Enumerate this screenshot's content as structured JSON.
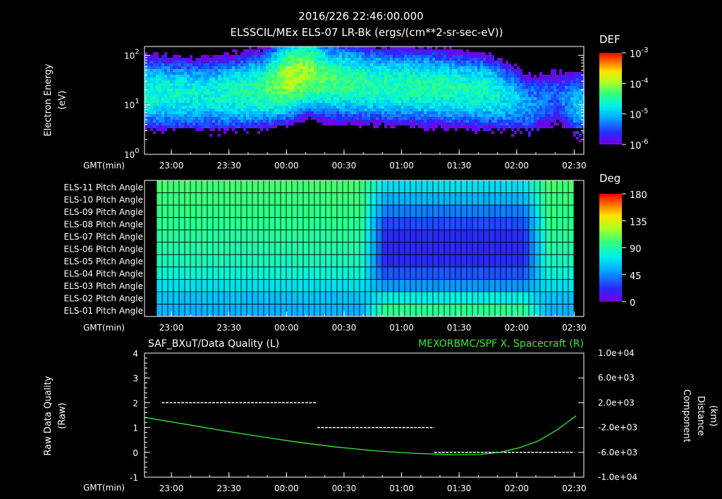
{
  "header": {
    "title_line1": "2016/226 22:46:00.000",
    "title_line2": "ELSSCIL/MEx ELS-07 LR-Bk   (ergs/(cm**2-sr-sec-eV))"
  },
  "colors": {
    "background": "#000000",
    "foreground": "#ffffff",
    "quality_trace": "#ffffff",
    "distance_trace": "#33ee33"
  },
  "chart_data": [
    {
      "type": "heatmap",
      "name": "energy-spectrogram",
      "ylabel_line1": "Electron Energy",
      "ylabel_line2": "(eV)",
      "xlabel": "GMT(min)",
      "x_ticks": [
        "23:00",
        "23:30",
        "00:00",
        "00:30",
        "01:00",
        "01:30",
        "02:00",
        "02:30"
      ],
      "x_range": [
        "22:46",
        "02:35"
      ],
      "y_scale": "log",
      "y_range": [
        1,
        150
      ],
      "y_ticks": [
        "10^0",
        "10^1",
        "10^2"
      ],
      "colorbar": {
        "label": "DEF",
        "scale": "log",
        "ticks": [
          "10^-6",
          "10^-5",
          "10^-4",
          "10^-3"
        ],
        "range": [
          1e-06,
          0.001
        ]
      },
      "profile": {
        "time_min": [
          0,
          30,
          60,
          75,
          85,
          95,
          120,
          150,
          180,
          200,
          215,
          225
        ],
        "core_log10_energy_eV": [
          1.3,
          1.25,
          1.35,
          1.6,
          1.7,
          1.55,
          1.45,
          1.4,
          1.3,
          1.05,
          1.2,
          1.05
        ],
        "core_log10_def": [
          -4.7,
          -4.8,
          -4.5,
          -4.0,
          -4.1,
          -4.4,
          -4.6,
          -4.6,
          -4.7,
          -5.3,
          -5.6,
          -5.1
        ]
      }
    },
    {
      "type": "heatmap",
      "name": "pitch-angle",
      "xlabel": "GMT(min)",
      "x_ticks": [
        "23:00",
        "23:30",
        "00:00",
        "00:30",
        "01:00",
        "01:30",
        "02:00",
        "02:30"
      ],
      "rows": [
        "ELS-11 Pitch Angle",
        "ELS-10 Pitch Angle",
        "ELS-09 Pitch Angle",
        "ELS-08 Pitch Angle",
        "ELS-07 Pitch Angle",
        "ELS-06 Pitch Angle",
        "ELS-05 Pitch Angle",
        "ELS-04 Pitch Angle",
        "ELS-03 Pitch Angle",
        "ELS-02 Pitch Angle",
        "ELS-01 Pitch Angle"
      ],
      "colorbar": {
        "label": "Deg",
        "ticks": [
          "0",
          "45",
          "90",
          "135",
          "180"
        ],
        "range": [
          0,
          180
        ]
      },
      "baseline_deg": [
        102,
        100,
        98,
        96,
        93,
        90,
        86,
        80,
        70,
        60,
        55
      ],
      "dip_deg": [
        70,
        55,
        42,
        30,
        22,
        20,
        22,
        32,
        48,
        75,
        95
      ],
      "dip_start_min": 125,
      "dip_end_min": 198
    },
    {
      "type": "line",
      "name": "quality-and-distance",
      "title_left": "SAF_BXuT/Data Quality (L)",
      "title_right": "MEXORBMC/SPF X, Spacecraft (R)",
      "xlabel": "GMT(min)",
      "x_ticks": [
        "23:00",
        "23:30",
        "00:00",
        "00:30",
        "01:00",
        "01:30",
        "02:00",
        "02:30"
      ],
      "y_left_label_line1": "Raw Data Quality",
      "y_left_label_line2": "(Raw)",
      "y_left_range": [
        -1,
        4
      ],
      "y_left_ticks": [
        "-1",
        "0",
        "1",
        "2",
        "3",
        "4"
      ],
      "y_right_label_line1": "Component",
      "y_right_label_line2": "Distance",
      "y_right_label_line3": "(km)",
      "y_right_range": [
        -10000,
        10000
      ],
      "y_right_ticks": [
        "-1.0e+04",
        "-6.0e+03",
        "-2.0e+03",
        "2.0e+03",
        "6.0e+03",
        "1.0e+04"
      ],
      "series": [
        {
          "role": "quality",
          "axis": "left",
          "segments": [
            {
              "start": "22:55",
              "end": "00:16",
              "value": 2
            },
            {
              "start": "00:16",
              "end": "01:17",
              "value": 1
            },
            {
              "start": "01:17",
              "end": "02:30",
              "value": 0
            }
          ]
        },
        {
          "role": "distance",
          "axis": "right",
          "time_min": [
            0,
            20,
            40,
            60,
            80,
            100,
            120,
            140,
            160,
            175,
            185,
            195,
            205,
            215,
            225
          ],
          "values": [
            -360,
            -1400,
            -2450,
            -3450,
            -4350,
            -5150,
            -5750,
            -6150,
            -6380,
            -6350,
            -6000,
            -5300,
            -4200,
            -2400,
            -100
          ]
        }
      ]
    }
  ]
}
